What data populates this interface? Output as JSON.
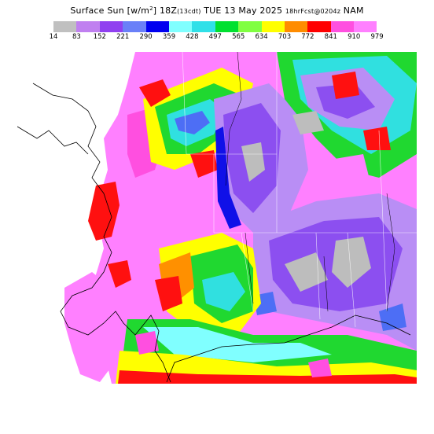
{
  "title": {
    "field": "Surface Sun",
    "units_pre": "[w/m",
    "units_sup": "2",
    "units_post": "]",
    "valid": "18Z",
    "local": "(13cdt)",
    "date": "TUE 13 May 2025",
    "forecast": "18hrFcst@0204z",
    "model": "NAM"
  },
  "legend": {
    "values": [
      "14",
      "83",
      "152",
      "221",
      "290",
      "359",
      "428",
      "497",
      "565",
      "634",
      "703",
      "772",
      "841",
      "910",
      "979"
    ],
    "colors": [
      "#c0c0c0",
      "#c080f0",
      "#9040f0",
      "#6a80f8",
      "#0000f0",
      "#80ffff",
      "#30e0e8",
      "#00e030",
      "#80ff40",
      "#ffff00",
      "#ff8c00",
      "#ff0000",
      "#ff50e0",
      "#ff80ff"
    ]
  },
  "palette": {
    "gray": "#bdbdbd",
    "lavender": "#b98ef5",
    "purple": "#8c4ff0",
    "blue": "#4d6ef5",
    "darkblue": "#1010e8",
    "cyan": "#80ffff",
    "teal": "#30e0e0",
    "green": "#20d830",
    "lime": "#90ff40",
    "yellow": "#ffff00",
    "orange": "#ff9000",
    "red": "#ff1010",
    "magenta": "#ff4fe0",
    "pink": "#ff80ff"
  }
}
